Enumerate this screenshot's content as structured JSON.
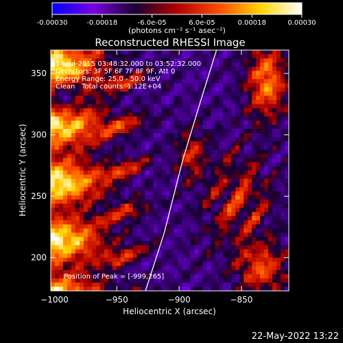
{
  "colorbar": {
    "ticks": [
      "-0.00030",
      "-0.00018",
      "-6.0e-05",
      "6.0e-05",
      "0.00018",
      "0.00030"
    ],
    "tick_values": [
      -0.0003,
      -0.00018,
      -6e-05,
      6e-05,
      0.00018,
      0.0003
    ],
    "range": [
      -0.0003,
      0.0003
    ],
    "units_label": "(photons cm⁻² s⁻¹ asec⁻²)",
    "colors": [
      "#0000ff",
      "#7a00e0",
      "#1a0033",
      "#b00000",
      "#ff4a00",
      "#ffd400",
      "#ffffff"
    ]
  },
  "annotations": {
    "time_range": "14-Jul-2015 03:48:32.000 to 03:52:32.000",
    "detectors": "Detectors: 3F 5F 6F 7F 8F 9F, Att 0",
    "energy": "Energy Range: 25.0 - 50.0 keV",
    "clean_label": "Clean",
    "total_counts": "Total counts: 1.12E+04",
    "peak": "Position of Peak = [-999,265]"
  },
  "footer_timestamp": "22-May-2022 13:22",
  "chart_data": {
    "type": "heatmap",
    "title": "Reconstructed RHESSI Image",
    "xlabel": "Heliocentric X (arcsec)",
    "ylabel": "Heliocentric Y (arcsec)",
    "xlim": [
      -1003,
      -812
    ],
    "ylim": [
      173,
      369
    ],
    "x_ticks": [
      "−1000",
      "−950",
      "−900",
      "−850"
    ],
    "x_tick_values": [
      -1000,
      -950,
      -900,
      -850
    ],
    "y_ticks": [
      "200",
      "250",
      "300",
      "350"
    ],
    "y_tick_values": [
      200,
      250,
      300,
      350
    ],
    "limb_curve": {
      "x": [
        -927,
        -912,
        -897,
        -882,
        -870
      ],
      "y": [
        173,
        220,
        280,
        330,
        369
      ]
    },
    "peak_position": [
      -999,
      265
    ]
  }
}
